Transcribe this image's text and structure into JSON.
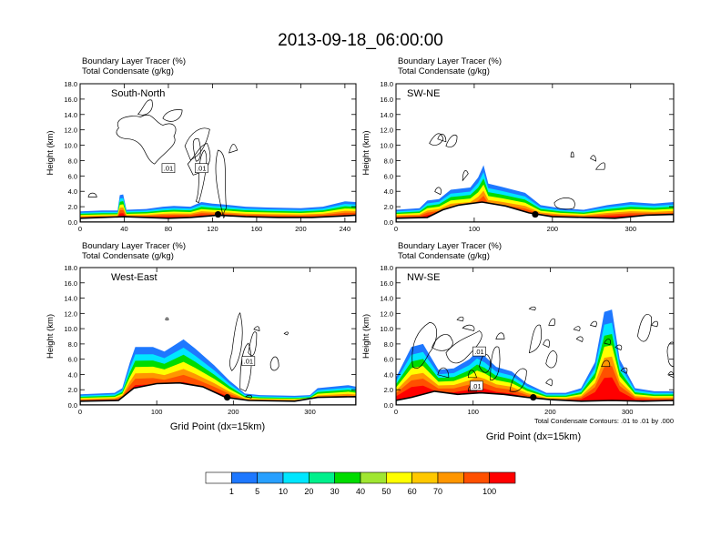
{
  "title": "2013-09-18_06:00:00",
  "panel_header_line1": "Boundary Layer Tracer   (%)",
  "panel_header_line2": "Total Condensate   (g/kg)",
  "contour_note": "Total Condensate Contours: .01 to .01 by .000",
  "xlabel": "Grid Point (dx=15km)",
  "ylabel": "Height (km)",
  "colorbar": {
    "colors": [
      "#ffffff",
      "#1e78ff",
      "#28a0ff",
      "#00e6ff",
      "#00f08c",
      "#00dc00",
      "#a0e632",
      "#ffff00",
      "#ffc800",
      "#ff9600",
      "#ff5000",
      "#ff0000"
    ],
    "labels": [
      "1",
      "5",
      "10",
      "20",
      "30",
      "40",
      "50",
      "60",
      "70",
      "100"
    ]
  },
  "chart_data": [
    {
      "type": "heatmap",
      "name_label": "South-North",
      "xlim": [
        0,
        250
      ],
      "xticks": [
        0,
        40,
        80,
        120,
        160,
        200,
        240
      ],
      "ylim": [
        0,
        18
      ],
      "yticks": [
        "0.0",
        "2.0",
        "4.0",
        "6.0",
        "8.0",
        "10.0",
        "12.0",
        "14.0",
        "16.0",
        "18.0"
      ],
      "contour_labels": [
        ".01",
        ".01"
      ],
      "tracer_top_km": [
        [
          0,
          1.4
        ],
        [
          20,
          1.5
        ],
        [
          34,
          1.5
        ],
        [
          36,
          3.5
        ],
        [
          39,
          3.6
        ],
        [
          42,
          1.6
        ],
        [
          60,
          1.7
        ],
        [
          75,
          2.0
        ],
        [
          85,
          2.1
        ],
        [
          100,
          2.0
        ],
        [
          110,
          2.6
        ],
        [
          120,
          2.4
        ],
        [
          130,
          2.3
        ],
        [
          150,
          2.0
        ],
        [
          170,
          1.9
        ],
        [
          200,
          1.8
        ],
        [
          220,
          2.0
        ],
        [
          240,
          2.7
        ],
        [
          250,
          2.6
        ]
      ],
      "terrain_km": [
        [
          0,
          0.5
        ],
        [
          20,
          0.6
        ],
        [
          40,
          0.7
        ],
        [
          60,
          0.6
        ],
        [
          80,
          0.5
        ],
        [
          100,
          0.6
        ],
        [
          125,
          0.9
        ],
        [
          150,
          0.7
        ],
        [
          180,
          0.6
        ],
        [
          210,
          0.6
        ],
        [
          240,
          0.8
        ],
        [
          250,
          0.9
        ]
      ],
      "marker_x": 125
    },
    {
      "type": "heatmap",
      "name_label": "SW-NE",
      "xlim": [
        0,
        355
      ],
      "xticks": [
        0,
        100,
        200,
        300
      ],
      "ylim": [
        0,
        18
      ],
      "yticks": [
        "0.0",
        "2.0",
        "4.0",
        "6.0",
        "8.0",
        "10.0",
        "12.0",
        "14.0",
        "16.0",
        "18.0"
      ],
      "contour_labels": [],
      "tracer_top_km": [
        [
          0,
          1.6
        ],
        [
          30,
          1.8
        ],
        [
          40,
          2.8
        ],
        [
          55,
          3.0
        ],
        [
          70,
          4.2
        ],
        [
          95,
          4.5
        ],
        [
          105,
          5.8
        ],
        [
          112,
          7.4
        ],
        [
          118,
          5.0
        ],
        [
          135,
          4.6
        ],
        [
          165,
          3.8
        ],
        [
          185,
          2.2
        ],
        [
          210,
          1.8
        ],
        [
          240,
          1.6
        ],
        [
          270,
          2.2
        ],
        [
          300,
          2.6
        ],
        [
          330,
          2.4
        ],
        [
          355,
          2.6
        ]
      ],
      "terrain_km": [
        [
          0,
          0.5
        ],
        [
          40,
          0.6
        ],
        [
          60,
          1.6
        ],
        [
          80,
          2.2
        ],
        [
          110,
          2.6
        ],
        [
          140,
          2.1
        ],
        [
          170,
          1.2
        ],
        [
          200,
          0.7
        ],
        [
          240,
          0.6
        ],
        [
          280,
          0.5
        ],
        [
          320,
          0.9
        ],
        [
          355,
          1.0
        ]
      ],
      "marker_x": 178
    },
    {
      "type": "heatmap",
      "name_label": "West-East",
      "xlim": [
        0,
        360
      ],
      "xticks": [
        0,
        100,
        200,
        300
      ],
      "ylim": [
        0,
        18
      ],
      "yticks": [
        "0.0",
        "2.0",
        "4.0",
        "6.0",
        "8.0",
        "10.0",
        "12.0",
        "14.0",
        "16.0",
        "18.0"
      ],
      "contour_labels": [
        ".01"
      ],
      "tracer_top_km": [
        [
          0,
          1.4
        ],
        [
          45,
          1.6
        ],
        [
          55,
          2.2
        ],
        [
          65,
          5.6
        ],
        [
          72,
          7.6
        ],
        [
          95,
          7.6
        ],
        [
          110,
          7.0
        ],
        [
          135,
          8.6
        ],
        [
          150,
          7.4
        ],
        [
          175,
          5.2
        ],
        [
          195,
          3.2
        ],
        [
          215,
          1.5
        ],
        [
          235,
          1.3
        ],
        [
          280,
          1.2
        ],
        [
          300,
          1.3
        ],
        [
          310,
          2.2
        ],
        [
          350,
          2.6
        ],
        [
          360,
          2.4
        ]
      ],
      "terrain_km": [
        [
          0,
          0.5
        ],
        [
          50,
          0.6
        ],
        [
          70,
          2.2
        ],
        [
          100,
          2.8
        ],
        [
          130,
          2.9
        ],
        [
          160,
          2.4
        ],
        [
          190,
          1.0
        ],
        [
          220,
          0.6
        ],
        [
          280,
          0.5
        ],
        [
          310,
          1.0
        ],
        [
          360,
          1.1
        ]
      ],
      "marker_x": 192
    },
    {
      "type": "heatmap",
      "name_label": "NW-SE",
      "xlim": [
        0,
        360
      ],
      "xticks": [
        0,
        100,
        200,
        300
      ],
      "ylim": [
        0,
        18
      ],
      "yticks": [
        "0.0",
        "2.0",
        "4.0",
        "6.0",
        "8.0",
        "10.0",
        "12.0",
        "14.0",
        "16.0",
        "18.0"
      ],
      "contour_labels": [
        ".01",
        ".01"
      ],
      "tracer_top_km": [
        [
          0,
          3.6
        ],
        [
          20,
          7.6
        ],
        [
          35,
          8.0
        ],
        [
          55,
          4.6
        ],
        [
          75,
          4.8
        ],
        [
          95,
          6.0
        ],
        [
          105,
          7.0
        ],
        [
          115,
          6.4
        ],
        [
          130,
          5.0
        ],
        [
          150,
          4.4
        ],
        [
          170,
          2.8
        ],
        [
          195,
          1.6
        ],
        [
          220,
          1.6
        ],
        [
          240,
          2.2
        ],
        [
          258,
          5.6
        ],
        [
          270,
          12.2
        ],
        [
          280,
          12.5
        ],
        [
          290,
          6.0
        ],
        [
          310,
          2.2
        ],
        [
          335,
          1.8
        ],
        [
          360,
          1.8
        ]
      ],
      "terrain_km": [
        [
          0,
          0.6
        ],
        [
          20,
          1.0
        ],
        [
          50,
          1.8
        ],
        [
          80,
          1.4
        ],
        [
          110,
          1.6
        ],
        [
          140,
          1.4
        ],
        [
          170,
          1.0
        ],
        [
          200,
          0.7
        ],
        [
          240,
          0.5
        ],
        [
          280,
          0.6
        ],
        [
          320,
          0.5
        ],
        [
          360,
          0.6
        ]
      ],
      "marker_x": 178
    }
  ]
}
